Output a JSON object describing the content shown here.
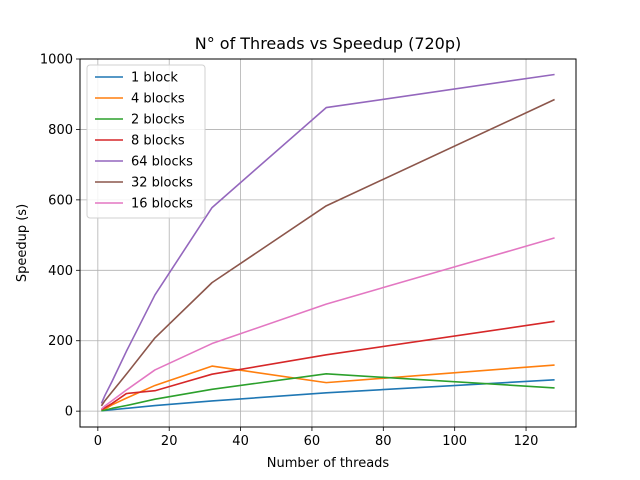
{
  "chart_data": {
    "type": "line",
    "title": "N° of Threads vs Speedup (720p)",
    "xlabel": "Number of threads",
    "ylabel": "Speedup (s)",
    "xlim": [
      -5,
      134
    ],
    "ylim": [
      -45,
      1000
    ],
    "xticks": [
      0,
      20,
      40,
      60,
      80,
      100,
      120
    ],
    "yticks": [
      0,
      200,
      400,
      600,
      800,
      1000
    ],
    "grid": true,
    "legend_position": "top-left",
    "x": [
      1,
      2,
      4,
      8,
      16,
      32,
      64,
      128
    ],
    "series": [
      {
        "name": "1 block",
        "color": "#1f77b4",
        "values": [
          1,
          2,
          4,
          8,
          16,
          29,
          52,
          89
        ]
      },
      {
        "name": "4 blocks",
        "color": "#ff7f0e",
        "values": [
          2,
          6,
          18,
          37,
          73,
          128,
          81,
          131
        ]
      },
      {
        "name": "2 blocks",
        "color": "#2ca02c",
        "values": [
          1,
          3,
          8,
          16,
          34,
          62,
          106,
          66
        ]
      },
      {
        "name": "8 blocks",
        "color": "#d62728",
        "values": [
          4,
          10,
          22,
          50,
          58,
          105,
          160,
          255
        ]
      },
      {
        "name": "64 blocks",
        "color": "#9467bd",
        "values": [
          22,
          45,
          85,
          170,
          330,
          578,
          862,
          956
        ]
      },
      {
        "name": "32 blocks",
        "color": "#8c564b",
        "values": [
          15,
          30,
          55,
          105,
          208,
          365,
          583,
          885
        ]
      },
      {
        "name": "16 blocks",
        "color": "#e377c2",
        "values": [
          6,
          15,
          30,
          60,
          117,
          192,
          304,
          492
        ]
      }
    ]
  }
}
